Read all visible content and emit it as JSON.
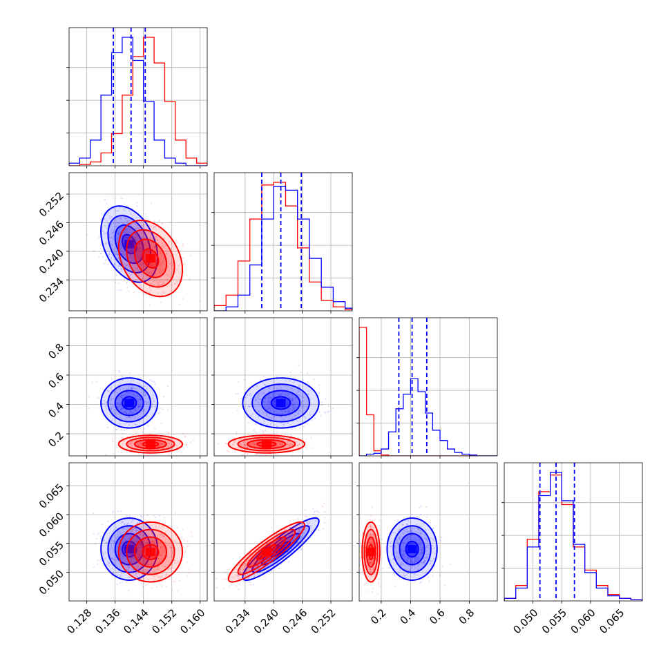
{
  "chart_data": {
    "type": "corner",
    "grid": true,
    "colors": {
      "series_a": "#0000ff",
      "series_b": "#ff0000"
    },
    "series": [
      {
        "color": "#0000ff",
        "mean": [
          0.14,
          0.2415,
          0.41,
          0.054
        ],
        "sd": [
          0.004,
          0.004,
          0.085,
          0.0027
        ],
        "corr": [
          [
            1,
            -0.35,
            0,
            0
          ],
          [
            -0.35,
            1,
            0,
            0.9
          ],
          [
            0,
            0,
            1,
            0
          ],
          [
            0,
            0.9,
            0,
            1
          ]
        ]
      },
      {
        "color": "#ff0000",
        "mean": [
          0.146,
          0.2385,
          0.13,
          0.0535
        ],
        "sd": [
          0.0045,
          0.004,
          0.03,
          0.0026
        ],
        "corr": [
          [
            1,
            -0.3,
            0,
            0
          ],
          [
            -0.3,
            1,
            0,
            0.9
          ],
          [
            0,
            0,
            1,
            0
          ],
          [
            0,
            0.9,
            0,
            1
          ]
        ]
      }
    ],
    "quantile_lines": [
      [
        0.1355,
        0.1405,
        0.1445
      ],
      [
        0.2375,
        0.2415,
        0.2458
      ],
      [
        0.32,
        0.41,
        0.51
      ],
      [
        0.0512,
        0.054,
        0.0572
      ]
    ],
    "axes": [
      {
        "range": [
          0.123,
          0.162
        ],
        "ticks": [
          0.128,
          0.136,
          0.144,
          0.152,
          0.16
        ],
        "tick_labels": [
          "0.128",
          "0.136",
          "0.144",
          "0.152",
          "0.160"
        ]
      },
      {
        "range": [
          0.2275,
          0.2565
        ],
        "ticks": [
          0.234,
          0.24,
          0.246,
          0.252
        ],
        "tick_labels": [
          "0.234",
          "0.240",
          "0.246",
          "0.252"
        ]
      },
      {
        "range": [
          0.05,
          0.99
        ],
        "ticks": [
          0.2,
          0.4,
          0.6,
          0.8
        ],
        "tick_labels": [
          "0.2",
          "0.4",
          "0.6",
          "0.8"
        ]
      },
      {
        "range": [
          0.045,
          0.069
        ],
        "ticks": [
          0.05,
          0.055,
          0.06,
          0.065
        ],
        "tick_labels": [
          "0.050",
          "0.055",
          "0.060",
          "0.065"
        ]
      }
    ],
    "histograms": [
      {
        "edges": [
          0.123,
          0.126,
          0.129,
          0.132,
          0.135,
          0.138,
          0.141,
          0.144,
          0.147,
          0.15,
          0.153,
          0.156,
          0.159,
          0.162
        ],
        "blue": [
          2,
          6,
          20,
          55,
          88,
          100,
          82,
          50,
          20,
          6,
          2,
          0,
          0
        ],
        "red": [
          0,
          1,
          3,
          10,
          25,
          55,
          85,
          100,
          80,
          50,
          20,
          6,
          2
        ]
      },
      {
        "edges": [
          0.2275,
          0.23,
          0.2325,
          0.235,
          0.2375,
          0.24,
          0.2425,
          0.245,
          0.2475,
          0.25,
          0.2525,
          0.255,
          0.2565
        ],
        "blue": [
          0,
          3,
          12,
          35,
          70,
          95,
          92,
          70,
          40,
          18,
          7,
          2
        ],
        "red": [
          4,
          12,
          38,
          70,
          96,
          98,
          80,
          48,
          22,
          8,
          3,
          1
        ]
      },
      {
        "edges": [
          0.05,
          0.1,
          0.15,
          0.2,
          0.25,
          0.3,
          0.35,
          0.4,
          0.45,
          0.5,
          0.55,
          0.6,
          0.65,
          0.7,
          0.75,
          0.8,
          0.85,
          0.9,
          0.95,
          0.99
        ],
        "blue": [
          0,
          2,
          3,
          8,
          28,
          55,
          72,
          90,
          75,
          50,
          30,
          18,
          8,
          4,
          2,
          1,
          0,
          0,
          0
        ],
        "red": [
          150,
          48,
          6,
          1,
          0,
          0,
          0,
          0,
          0,
          0,
          0,
          0,
          0,
          0,
          0,
          0,
          0,
          0,
          0
        ]
      },
      {
        "edges": [
          0.045,
          0.047,
          0.049,
          0.051,
          0.053,
          0.055,
          0.057,
          0.059,
          0.061,
          0.063,
          0.065,
          0.067,
          0.069
        ],
        "blue": [
          2,
          10,
          42,
          82,
          100,
          78,
          44,
          22,
          10,
          4,
          2,
          1
        ],
        "red": [
          2,
          12,
          48,
          85,
          98,
          75,
          42,
          24,
          12,
          5,
          2,
          1
        ]
      }
    ]
  }
}
